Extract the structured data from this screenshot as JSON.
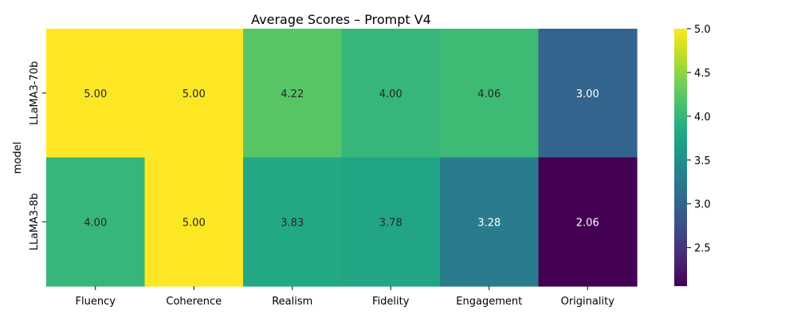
{
  "chart_data": {
    "type": "heatmap",
    "title": "Average Scores – Prompt V4",
    "xlabel": "",
    "ylabel": "model",
    "categories": [
      "Fluency",
      "Coherence",
      "Realism",
      "Fidelity",
      "Engagement",
      "Originality"
    ],
    "rows": [
      "LLaMA3-70b",
      "LLaMA3-8b"
    ],
    "values": [
      [
        5.0,
        5.0,
        4.22,
        4.0,
        4.06,
        3.0
      ],
      [
        4.0,
        5.0,
        3.83,
        3.78,
        3.28,
        2.06
      ]
    ],
    "value_labels": [
      [
        "5.00",
        "5.00",
        "4.22",
        "4.00",
        "4.06",
        "3.00"
      ],
      [
        "4.00",
        "5.00",
        "3.83",
        "3.78",
        "3.28",
        "2.06"
      ]
    ],
    "colorbar": {
      "colormap": "viridis",
      "vmin": 2.06,
      "vmax": 5.0,
      "ticks": [
        2.5,
        3.0,
        3.5,
        4.0,
        4.5,
        5.0
      ],
      "tick_labels": [
        "2.5",
        "3.0",
        "3.5",
        "4.0",
        "4.5",
        "5.0"
      ]
    },
    "grid": false,
    "legend": "colorbar-right"
  }
}
